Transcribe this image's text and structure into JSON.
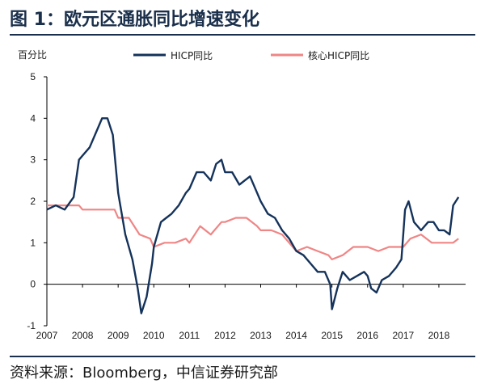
{
  "title": "图 1：欧元区通胀同比增速变化",
  "source": "资料来源：Bloomberg，中信证券研究部",
  "chart_data": {
    "type": "line",
    "ylabel": "百分比",
    "xlabel": "",
    "ylim": [
      -1,
      5
    ],
    "yticks": [
      "5",
      "4",
      "3",
      "2",
      "1",
      "0",
      "-1"
    ],
    "xlim": [
      2007.0,
      2018.75
    ],
    "xticks": [
      "2007",
      "2008",
      "2009",
      "2010",
      "2011",
      "2012",
      "2013",
      "2014",
      "2015",
      "2016",
      "2017",
      "2018"
    ],
    "legend_position": "top-right",
    "series": [
      {
        "name": "HICP同比",
        "color": "#14325a",
        "x": [
          2007.0,
          2007.25,
          2007.5,
          2007.75,
          2007.9,
          2008.0,
          2008.2,
          2008.35,
          2008.45,
          2008.55,
          2008.7,
          2008.85,
          2009.0,
          2009.2,
          2009.4,
          2009.55,
          2009.65,
          2009.8,
          2009.95,
          2010.0,
          2010.2,
          2010.35,
          2010.5,
          2010.7,
          2010.9,
          2011.0,
          2011.2,
          2011.4,
          2011.6,
          2011.75,
          2011.9,
          2012.0,
          2012.2,
          2012.4,
          2012.55,
          2012.7,
          2012.9,
          2013.0,
          2013.2,
          2013.4,
          2013.6,
          2013.8,
          2014.0,
          2014.2,
          2014.4,
          2014.6,
          2014.8,
          2014.95,
          2015.0,
          2015.15,
          2015.3,
          2015.5,
          2015.7,
          2015.9,
          2016.0,
          2016.1,
          2016.25,
          2016.4,
          2016.6,
          2016.8,
          2016.95,
          2017.05,
          2017.15,
          2017.3,
          2017.5,
          2017.7,
          2017.85,
          2018.0,
          2018.15,
          2018.3,
          2018.4,
          2018.55
        ],
        "values": [
          1.8,
          1.9,
          1.8,
          2.1,
          3.0,
          3.1,
          3.3,
          3.6,
          3.8,
          4.0,
          4.0,
          3.6,
          2.2,
          1.2,
          0.6,
          -0.1,
          -0.7,
          -0.3,
          0.5,
          0.9,
          1.5,
          1.6,
          1.7,
          1.9,
          2.2,
          2.3,
          2.7,
          2.7,
          2.5,
          2.9,
          3.0,
          2.7,
          2.7,
          2.4,
          2.5,
          2.6,
          2.2,
          2.0,
          1.7,
          1.6,
          1.3,
          1.1,
          0.8,
          0.7,
          0.5,
          0.3,
          0.3,
          0.0,
          -0.6,
          -0.1,
          0.3,
          0.1,
          0.2,
          0.3,
          0.2,
          -0.1,
          -0.2,
          0.1,
          0.2,
          0.4,
          0.6,
          1.8,
          2.0,
          1.5,
          1.3,
          1.5,
          1.5,
          1.3,
          1.3,
          1.2,
          1.9,
          2.1
        ]
      },
      {
        "name": "核心HICP同比",
        "color": "#f08585",
        "x": [
          2007.0,
          2007.3,
          2007.6,
          2007.9,
          2008.0,
          2008.3,
          2008.6,
          2008.9,
          2009.0,
          2009.3,
          2009.6,
          2009.9,
          2010.0,
          2010.3,
          2010.6,
          2010.9,
          2011.0,
          2011.3,
          2011.6,
          2011.9,
          2012.0,
          2012.3,
          2012.6,
          2012.9,
          2013.0,
          2013.3,
          2013.6,
          2013.9,
          2014.0,
          2014.3,
          2014.6,
          2014.9,
          2015.0,
          2015.3,
          2015.6,
          2015.9,
          2016.0,
          2016.3,
          2016.6,
          2016.9,
          2017.0,
          2017.2,
          2017.5,
          2017.8,
          2018.0,
          2018.2,
          2018.4,
          2018.55
        ],
        "values": [
          1.9,
          1.9,
          1.9,
          1.9,
          1.8,
          1.8,
          1.8,
          1.8,
          1.6,
          1.6,
          1.2,
          1.1,
          0.9,
          1.0,
          1.0,
          1.1,
          1.0,
          1.4,
          1.2,
          1.5,
          1.5,
          1.6,
          1.6,
          1.4,
          1.3,
          1.3,
          1.2,
          0.9,
          0.8,
          0.9,
          0.8,
          0.7,
          0.6,
          0.7,
          0.9,
          0.9,
          0.9,
          0.8,
          0.9,
          0.9,
          0.9,
          1.1,
          1.2,
          1.0,
          1.0,
          1.0,
          1.0,
          1.1
        ]
      }
    ]
  }
}
